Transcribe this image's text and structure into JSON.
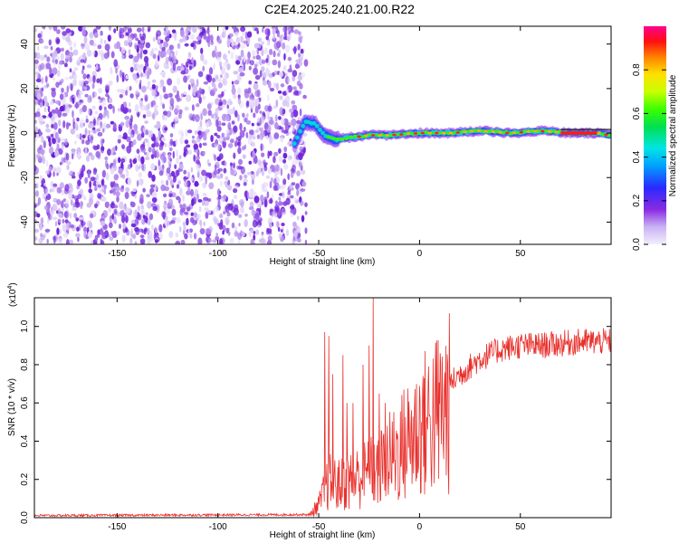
{
  "title": "C2E4.2025.240.21.00.R22",
  "colors": {
    "spectrum_purple": "#7a1fe0",
    "spectrum_light": "#d9c7f5",
    "snr_line": "#e8302c",
    "axis": "#000000"
  },
  "chart_data": [
    {
      "type": "heatmap",
      "name": "spectrogram",
      "xlabel": "Height of straight line (km)",
      "ylabel": "Frequency (Hz)",
      "xlim": [
        -191,
        95
      ],
      "ylim": [
        -50,
        48
      ],
      "xticks": [
        -150,
        -100,
        -50,
        0,
        50
      ],
      "yticks": [
        -40,
        -20,
        0,
        20,
        40
      ],
      "noise_region": {
        "x_from": -191,
        "x_to": -58
      },
      "signal_trace": [
        {
          "x": -62,
          "y": -5
        },
        {
          "x": -57,
          "y": 5
        },
        {
          "x": -52,
          "y": 4
        },
        {
          "x": -47,
          "y": -1
        },
        {
          "x": -42,
          "y": -3
        },
        {
          "x": -35,
          "y": -2
        },
        {
          "x": -25,
          "y": -1
        },
        {
          "x": -15,
          "y": -1
        },
        {
          "x": 0,
          "y": 0
        },
        {
          "x": 15,
          "y": 0
        },
        {
          "x": 30,
          "y": 1
        },
        {
          "x": 45,
          "y": 0
        },
        {
          "x": 60,
          "y": 1
        },
        {
          "x": 75,
          "y": 0
        },
        {
          "x": 88,
          "y": 0
        },
        {
          "x": 95,
          "y": -1
        }
      ],
      "colorbar": {
        "label": "Normalized spectral amplitude",
        "ticks": [
          0.0,
          0.2,
          0.4,
          0.6,
          0.8
        ],
        "tick_labels": [
          "0.0",
          "0.2",
          "0.4",
          "0.6",
          "0.8"
        ],
        "range": [
          0,
          1
        ]
      }
    },
    {
      "type": "line",
      "name": "snr",
      "xlabel": "Height of straight line (km)",
      "ylabel": "SNR (10 * v/v)",
      "multiplier": "(x10",
      "multiplier_exp": "4",
      "multiplier_close": ")",
      "xlim": [
        -191,
        95
      ],
      "ylim": [
        0,
        1.15
      ],
      "xticks": [
        -150,
        -100,
        -50,
        0,
        50
      ],
      "yticks": [
        0.0,
        0.2,
        0.4,
        0.6,
        0.8,
        1.0
      ],
      "ytick_labels": [
        "0.0",
        "0.2",
        "0.4",
        "0.6",
        "0.8",
        "1.0"
      ],
      "envelope": [
        {
          "x": -191,
          "y": 0.005
        },
        {
          "x": -55,
          "y": 0.01
        },
        {
          "x": -50,
          "y": 0.08
        },
        {
          "x": -45,
          "y": 0.22
        },
        {
          "x": -40,
          "y": 0.2
        },
        {
          "x": -30,
          "y": 0.25
        },
        {
          "x": -20,
          "y": 0.3
        },
        {
          "x": -10,
          "y": 0.42
        },
        {
          "x": 0,
          "y": 0.55
        },
        {
          "x": 10,
          "y": 0.65
        },
        {
          "x": 20,
          "y": 0.75
        },
        {
          "x": 30,
          "y": 0.83
        },
        {
          "x": 40,
          "y": 0.88
        },
        {
          "x": 50,
          "y": 0.9
        },
        {
          "x": 60,
          "y": 0.9
        },
        {
          "x": 70,
          "y": 0.91
        },
        {
          "x": 80,
          "y": 0.92
        },
        {
          "x": 95,
          "y": 0.92
        }
      ],
      "spikes": [
        {
          "x": -47,
          "y": 0.97
        },
        {
          "x": -45,
          "y": 0.95
        },
        {
          "x": -43,
          "y": 0.75
        },
        {
          "x": -38,
          "y": 0.85
        },
        {
          "x": -36,
          "y": 0.6
        },
        {
          "x": -33,
          "y": 0.6
        },
        {
          "x": -28,
          "y": 0.8
        },
        {
          "x": -25,
          "y": 0.9
        },
        {
          "x": -23,
          "y": 1.15
        },
        {
          "x": -20,
          "y": 0.65
        },
        {
          "x": -17,
          "y": 0.6
        }
      ]
    }
  ]
}
